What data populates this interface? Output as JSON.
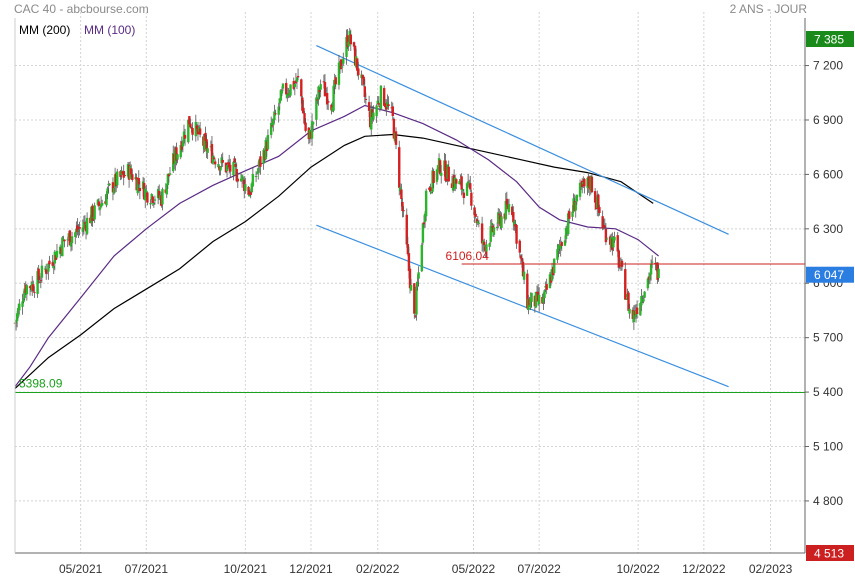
{
  "header": {
    "title": "CAC 40 - abcbourse.com",
    "period": "2 ANS - JOUR"
  },
  "chart_data": {
    "type": "candlestick",
    "ylim": [
      4513,
      7385
    ],
    "yticks": [
      4800,
      5100,
      5400,
      5700,
      6000,
      6300,
      6600,
      6900,
      7200
    ],
    "ytick_labels": [
      "4 800",
      "5 100",
      "5 400",
      "5 700",
      "6 000",
      "6 300",
      "6 600",
      "6 900",
      "7 200"
    ],
    "x_range": [
      "2021-03-01",
      "2023-03-05"
    ],
    "xticks": [
      "2021-05-01",
      "2021-07-01",
      "2021-10-01",
      "2021-12-01",
      "2022-02-01",
      "2022-05-01",
      "2022-07-01",
      "2022-10-01",
      "2022-12-01",
      "2023-02-01"
    ],
    "xtick_labels": [
      "05/2021",
      "07/2021",
      "10/2021",
      "12/2021",
      "02/2022",
      "05/2022",
      "07/2022",
      "10/2022",
      "12/2022",
      "02/2023"
    ],
    "price_badges": {
      "high": {
        "value": 7385,
        "label": "7 385",
        "color": "#1a8a1a"
      },
      "last": {
        "value": 6047,
        "label": "6 047",
        "color": "#2a7de1"
      },
      "low": {
        "value": 4513,
        "label": "4 513",
        "color": "#cc1f1f"
      }
    },
    "legend": [
      {
        "label": "MM (200)",
        "color": "#000000"
      },
      {
        "label": "MM (100)",
        "color": "#5b2a86"
      }
    ],
    "lines": {
      "support": {
        "value": 5398.09,
        "label": "5398.09",
        "color": "#1aa01a"
      },
      "resistance": {
        "value": 6106.04,
        "label": "6106.04",
        "color": "#cc1f1f"
      }
    },
    "channel": {
      "color": "#3a8fe0",
      "upper": [
        [
          "2021-12-06",
          7310
        ],
        [
          "2022-12-24",
          6270
        ]
      ],
      "lower": [
        [
          "2021-12-06",
          6320
        ],
        [
          "2022-12-24",
          5430
        ]
      ]
    },
    "ma200": [
      [
        "2021-03-01",
        5420
      ],
      [
        "2021-04-01",
        5590
      ],
      [
        "2021-05-01",
        5715
      ],
      [
        "2021-06-01",
        5860
      ],
      [
        "2021-07-10",
        6000
      ],
      [
        "2021-08-01",
        6080
      ],
      [
        "2021-09-01",
        6230
      ],
      [
        "2021-10-01",
        6340
      ],
      [
        "2021-11-01",
        6480
      ],
      [
        "2021-12-01",
        6640
      ],
      [
        "2022-01-01",
        6760
      ],
      [
        "2022-01-20",
        6810
      ],
      [
        "2022-02-15",
        6820
      ],
      [
        "2022-03-15",
        6800
      ],
      [
        "2022-04-15",
        6760
      ],
      [
        "2022-05-15",
        6720
      ],
      [
        "2022-06-15",
        6680
      ],
      [
        "2022-07-15",
        6640
      ],
      [
        "2022-08-15",
        6610
      ],
      [
        "2022-09-15",
        6560
      ],
      [
        "2022-10-15",
        6440
      ]
    ],
    "ma100": [
      [
        "2021-03-01",
        5430
      ],
      [
        "2021-03-15",
        5540
      ],
      [
        "2021-04-01",
        5700
      ],
      [
        "2021-05-01",
        5920
      ],
      [
        "2021-06-01",
        6150
      ],
      [
        "2021-07-01",
        6300
      ],
      [
        "2021-08-01",
        6440
      ],
      [
        "2021-09-01",
        6540
      ],
      [
        "2021-10-01",
        6620
      ],
      [
        "2021-11-01",
        6700
      ],
      [
        "2021-12-01",
        6840
      ],
      [
        "2022-01-01",
        6920
      ],
      [
        "2022-01-20",
        6980
      ],
      [
        "2022-02-15",
        6940
      ],
      [
        "2022-03-15",
        6880
      ],
      [
        "2022-04-15",
        6790
      ],
      [
        "2022-05-15",
        6680
      ],
      [
        "2022-06-10",
        6560
      ],
      [
        "2022-07-01",
        6420
      ],
      [
        "2022-07-20",
        6350
      ],
      [
        "2022-08-15",
        6310
      ],
      [
        "2022-09-10",
        6300
      ],
      [
        "2022-10-01",
        6240
      ],
      [
        "2022-10-20",
        6150
      ]
    ],
    "close_path": [
      [
        "2021-03-01",
        5780
      ],
      [
        "2021-03-10",
        5980
      ],
      [
        "2021-03-20",
        6000
      ],
      [
        "2021-04-01",
        6100
      ],
      [
        "2021-04-15",
        6230
      ],
      [
        "2021-05-01",
        6300
      ],
      [
        "2021-05-15",
        6400
      ],
      [
        "2021-06-01",
        6550
      ],
      [
        "2021-06-15",
        6620
      ],
      [
        "2021-07-01",
        6500
      ],
      [
        "2021-07-15",
        6470
      ],
      [
        "2021-07-25",
        6650
      ],
      [
        "2021-08-10",
        6900
      ],
      [
        "2021-08-25",
        6750
      ],
      [
        "2021-09-10",
        6650
      ],
      [
        "2021-09-25",
        6600
      ],
      [
        "2021-10-05",
        6500
      ],
      [
        "2021-10-20",
        6750
      ],
      [
        "2021-11-05",
        7050
      ],
      [
        "2021-11-20",
        7120
      ],
      [
        "2021-11-28",
        6750
      ],
      [
        "2021-12-10",
        7100
      ],
      [
        "2021-12-20",
        7000
      ],
      [
        "2022-01-05",
        7370
      ],
      [
        "2022-01-15",
        7150
      ],
      [
        "2022-01-25",
        6900
      ],
      [
        "2022-02-05",
        7050
      ],
      [
        "2022-02-15",
        6900
      ],
      [
        "2022-02-24",
        6400
      ],
      [
        "2022-03-07",
        5800
      ],
      [
        "2022-03-18",
        6500
      ],
      [
        "2022-03-31",
        6650
      ],
      [
        "2022-04-15",
        6550
      ],
      [
        "2022-04-28",
        6500
      ],
      [
        "2022-05-10",
        6200
      ],
      [
        "2022-05-20",
        6300
      ],
      [
        "2022-06-05",
        6450
      ],
      [
        "2022-06-20",
        5900
      ],
      [
        "2022-07-05",
        5900
      ],
      [
        "2022-07-20",
        6200
      ],
      [
        "2022-08-05",
        6480
      ],
      [
        "2022-08-18",
        6560
      ],
      [
        "2022-08-30",
        6300
      ],
      [
        "2022-09-10",
        6200
      ],
      [
        "2022-09-25",
        5800
      ],
      [
        "2022-10-05",
        5950
      ],
      [
        "2022-10-15",
        6100
      ],
      [
        "2022-10-20",
        6047
      ]
    ]
  }
}
